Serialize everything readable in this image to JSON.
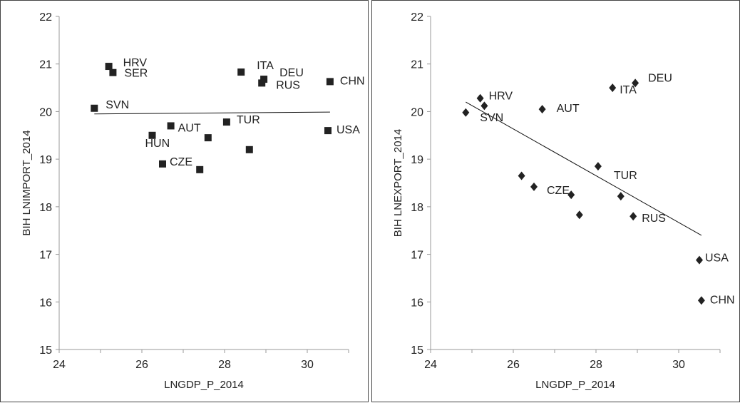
{
  "chart_data": [
    {
      "type": "scatter",
      "xlabel": "LNGDP_P_2014",
      "ylabel": "BIH LNIMPORT_2014",
      "xlim": [
        24,
        31
      ],
      "ylim": [
        15,
        22
      ],
      "xticks": [
        "24",
        "26",
        "28",
        "30"
      ],
      "yticks": [
        "15",
        "16",
        "17",
        "18",
        "19",
        "20",
        "21",
        "22"
      ],
      "marker": "square",
      "grid": false,
      "trendline": {
        "x": [
          24.85,
          30.55
        ],
        "y": [
          19.95,
          19.99
        ]
      },
      "points": [
        {
          "x": 25.2,
          "y": 20.95,
          "label": "HRV"
        },
        {
          "x": 25.3,
          "y": 20.82,
          "label": "SER"
        },
        {
          "x": 24.85,
          "y": 20.07,
          "label": "SVN"
        },
        {
          "x": 26.25,
          "y": 19.5,
          "label": "HUN"
        },
        {
          "x": 26.7,
          "y": 19.7,
          "label": "AUT"
        },
        {
          "x": 26.5,
          "y": 18.9,
          "label": "CZE"
        },
        {
          "x": 27.4,
          "y": 18.78,
          "label": ""
        },
        {
          "x": 27.6,
          "y": 19.45,
          "label": ""
        },
        {
          "x": 28.05,
          "y": 19.78,
          "label": "TUR"
        },
        {
          "x": 28.4,
          "y": 20.83,
          "label": "ITA"
        },
        {
          "x": 28.6,
          "y": 19.2,
          "label": ""
        },
        {
          "x": 28.9,
          "y": 20.6,
          "label": "RUS"
        },
        {
          "x": 28.95,
          "y": 20.68,
          "label": "DEU"
        },
        {
          "x": 30.55,
          "y": 20.63,
          "label": "CHN"
        },
        {
          "x": 30.5,
          "y": 19.6,
          "label": "USA"
        }
      ]
    },
    {
      "type": "scatter",
      "xlabel": "LNGDP_P_2014",
      "ylabel": "BIH LNEXPORT_2014",
      "xlim": [
        24,
        31
      ],
      "ylim": [
        15,
        22
      ],
      "xticks": [
        "24",
        "26",
        "28",
        "30"
      ],
      "yticks": [
        "15",
        "16",
        "17",
        "18",
        "19",
        "20",
        "21",
        "22"
      ],
      "marker": "diamond",
      "grid": false,
      "trendline": {
        "x": [
          24.85,
          30.55
        ],
        "y": [
          20.2,
          17.4
        ]
      },
      "points": [
        {
          "x": 25.2,
          "y": 20.28,
          "label": "HRV"
        },
        {
          "x": 25.3,
          "y": 20.12,
          "label": ""
        },
        {
          "x": 24.85,
          "y": 19.98,
          "label": "SVN"
        },
        {
          "x": 26.7,
          "y": 20.05,
          "label": "AUT"
        },
        {
          "x": 26.2,
          "y": 18.65,
          "label": ""
        },
        {
          "x": 26.5,
          "y": 18.42,
          "label": "CZE"
        },
        {
          "x": 27.4,
          "y": 18.25,
          "label": ""
        },
        {
          "x": 27.6,
          "y": 17.83,
          "label": ""
        },
        {
          "x": 28.05,
          "y": 18.85,
          "label": "TUR"
        },
        {
          "x": 28.4,
          "y": 20.5,
          "label": "ITA"
        },
        {
          "x": 28.95,
          "y": 20.6,
          "label": "DEU"
        },
        {
          "x": 28.6,
          "y": 18.22,
          "label": ""
        },
        {
          "x": 28.9,
          "y": 17.8,
          "label": "RUS"
        },
        {
          "x": 30.5,
          "y": 16.88,
          "label": "USA"
        },
        {
          "x": 30.55,
          "y": 16.03,
          "label": "CHN"
        }
      ]
    }
  ]
}
